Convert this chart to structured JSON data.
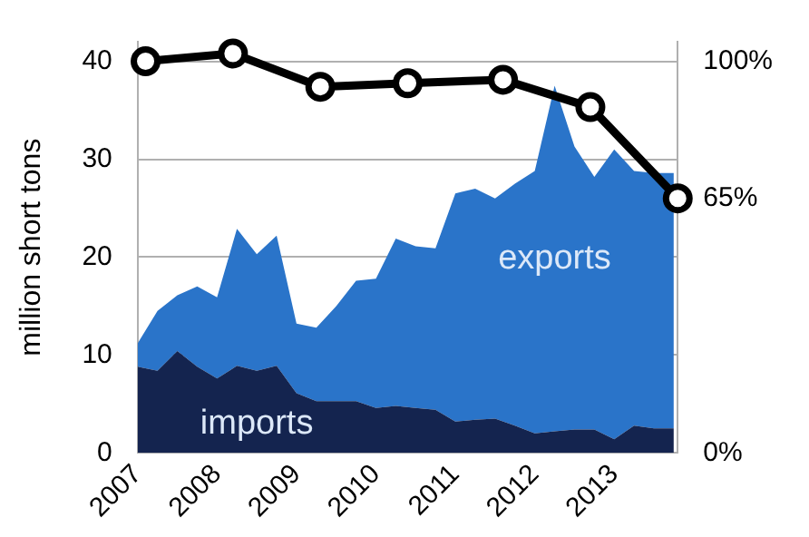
{
  "chart_data": {
    "type": "area",
    "stacked": true,
    "ylabel": "million short tons",
    "x": [
      2007,
      2007.25,
      2007.5,
      2007.75,
      2008,
      2008.25,
      2008.5,
      2008.75,
      2009,
      2009.25,
      2009.5,
      2009.75,
      2010,
      2010.25,
      2010.5,
      2010.75,
      2011,
      2011.25,
      2011.5,
      2011.75,
      2012,
      2012.25,
      2012.5,
      2012.75,
      2013,
      2013.25,
      2013.5,
      2013.75
    ],
    "series": [
      {
        "name": "imports",
        "color": "#14244f",
        "values": [
          8.8,
          8.4,
          10.4,
          8.8,
          7.6,
          8.9,
          8.4,
          8.9,
          6.1,
          5.3,
          5.3,
          5.3,
          4.6,
          4.8,
          4.6,
          4.4,
          3.2,
          3.4,
          3.5,
          2.8,
          2.0,
          2.2,
          2.4,
          2.4,
          1.4,
          2.8,
          2.5,
          2.5
        ]
      },
      {
        "name": "exports",
        "color": "#2a74c9",
        "values": [
          2.4,
          6.1,
          5.7,
          8.2,
          8.3,
          14.0,
          11.9,
          13.3,
          7.1,
          7.5,
          9.7,
          12.3,
          13.2,
          17.1,
          16.5,
          16.5,
          23.3,
          23.6,
          22.5,
          24.7,
          26.8,
          35.3,
          28.9,
          25.8,
          29.6,
          26.0,
          26.1,
          26.1
        ]
      },
      {
        "type": "line",
        "axis": "y2",
        "color": "#000000",
        "marker": "circle",
        "x": [
          2007.1,
          2008.2,
          2009.3,
          2010.4,
          2011.6,
          2012.7,
          2013.8
        ],
        "values": [
          100,
          102,
          93.5,
          94.4,
          95.3,
          88.3,
          65
        ]
      }
    ],
    "xlim": [
      2007,
      2013.8
    ],
    "xticks": [
      2007,
      2008,
      2009,
      2010,
      2011,
      2012,
      2013
    ],
    "ylim": [
      0,
      42
    ],
    "yticks": [
      0,
      10,
      20,
      30,
      40
    ],
    "y2lim": [
      0,
      105
    ],
    "y2ticks": [
      {
        "value": 0,
        "label": "0%"
      },
      {
        "value": 65,
        "label": "65%"
      },
      {
        "value": 100,
        "label": "100%"
      }
    ],
    "grid": "y",
    "legend": false
  }
}
